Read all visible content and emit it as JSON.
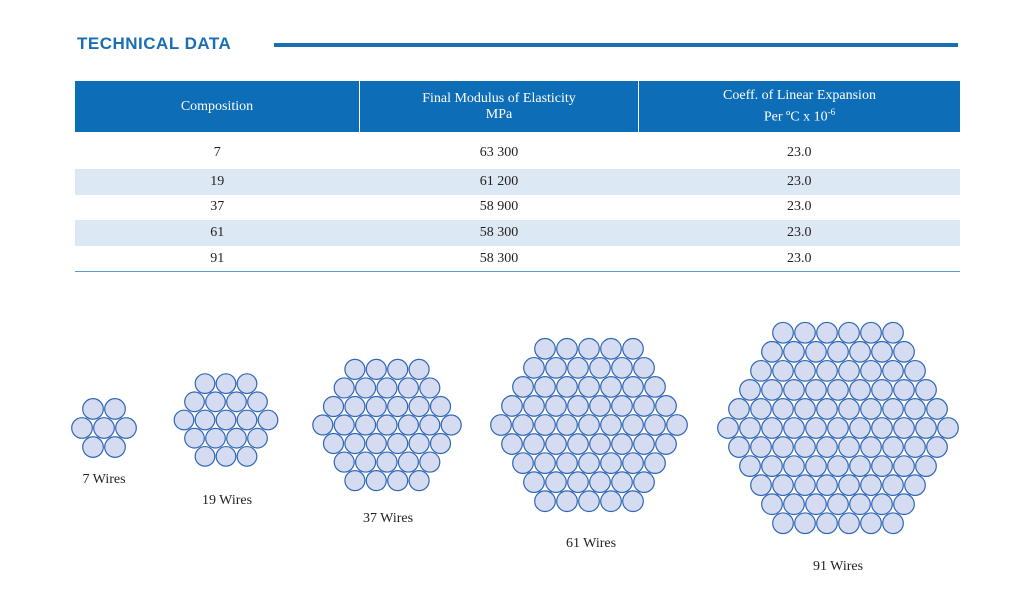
{
  "section": {
    "title": "TECHNICAL DATA"
  },
  "table": {
    "headers": [
      {
        "line1": "Composition",
        "line2": ""
      },
      {
        "line1": "Final Modulus of Elasticity",
        "line2": "MPa"
      },
      {
        "line1": "Coeff. of Linear Expansion",
        "line2": "Per ºC x 10",
        "sup": "-6"
      }
    ],
    "rows": [
      [
        "7",
        "63 300",
        "23.0"
      ],
      [
        "19",
        "61 200",
        "23.0"
      ],
      [
        "37",
        "58 900",
        "23.0"
      ],
      [
        "61",
        "58 300",
        "23.0"
      ],
      [
        "91",
        "58 300",
        "23.0"
      ]
    ]
  },
  "strands": [
    {
      "label": "7 Wires",
      "wires": 7
    },
    {
      "label": "19 Wires",
      "wires": 19
    },
    {
      "label": "37 Wires",
      "wires": 37
    },
    {
      "label": "61 Wires",
      "wires": 61
    },
    {
      "label": "91 Wires",
      "wires": 91
    }
  ],
  "colors": {
    "accent": "#1a6fb4",
    "header_bg": "#0d6db6",
    "stripe": "#dce8f4",
    "wire_fill": "#d5dcf2",
    "wire_stroke": "#2e66b5"
  }
}
